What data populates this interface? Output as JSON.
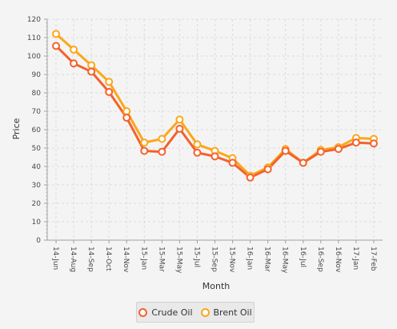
{
  "chart_data": {
    "type": "line",
    "title": "",
    "xlabel": "Month",
    "ylabel": "Price",
    "categories": [
      "14-Jun",
      "14-Aug",
      "14-Sep",
      "14-Oct",
      "14-Nov",
      "15-Jan",
      "15-Mar",
      "15-May",
      "15-Jul",
      "15-Sep",
      "15-Nov",
      "16-Jan",
      "16-Mar",
      "16-May",
      "16-Jul",
      "16-Sep",
      "16-Nov",
      "17-Jan",
      "17-Feb"
    ],
    "ylim": [
      0,
      120
    ],
    "yticks": [
      0,
      10,
      20,
      30,
      40,
      50,
      60,
      70,
      80,
      90,
      100,
      110,
      120
    ],
    "grid": true,
    "legend_position": "bottom",
    "series": [
      {
        "name": "Crude Oil",
        "color": "#f3622d",
        "values": [
          105.5,
          96,
          91.5,
          80.5,
          66.5,
          48.5,
          48,
          60.5,
          47.5,
          45.5,
          42,
          34,
          38.5,
          48.5,
          42,
          48,
          49.5,
          53,
          52.5
        ]
      },
      {
        "name": "Brent Oil",
        "color": "#fba71b",
        "values": [
          112,
          103.5,
          95,
          86,
          70,
          53,
          55,
          65.5,
          52,
          48.5,
          44.5,
          35,
          39.5,
          49.5,
          42,
          49,
          50.5,
          55.5,
          55
        ]
      }
    ]
  }
}
